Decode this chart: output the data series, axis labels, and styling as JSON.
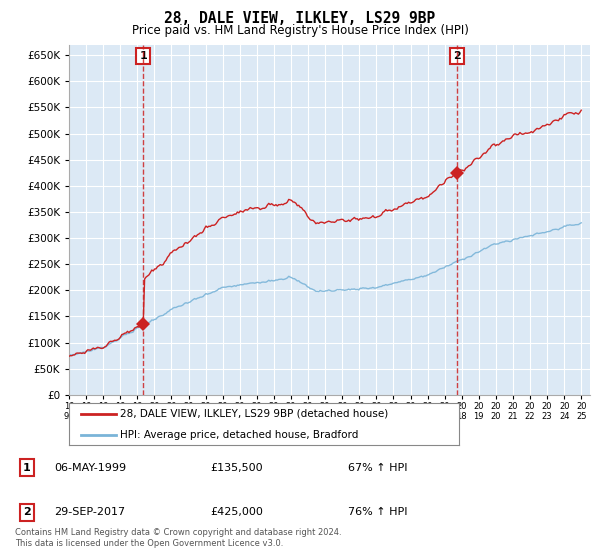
{
  "title": "28, DALE VIEW, ILKLEY, LS29 9BP",
  "subtitle": "Price paid vs. HM Land Registry's House Price Index (HPI)",
  "ylim": [
    0,
    670000
  ],
  "yticks": [
    0,
    50000,
    100000,
    150000,
    200000,
    250000,
    300000,
    350000,
    400000,
    450000,
    500000,
    550000,
    600000,
    650000
  ],
  "hpi_color": "#7ab4d8",
  "price_color": "#cc2222",
  "vline_color": "#cc2222",
  "sale1_date": "06-MAY-1999",
  "sale1_price": 135500,
  "sale1_hpi_txt": "67% ↑ HPI",
  "sale2_date": "29-SEP-2017",
  "sale2_price": 425000,
  "sale2_hpi_txt": "76% ↑ HPI",
  "legend_property": "28, DALE VIEW, ILKLEY, LS29 9BP (detached house)",
  "legend_hpi": "HPI: Average price, detached house, Bradford",
  "footnote": "Contains HM Land Registry data © Crown copyright and database right 2024.\nThis data is licensed under the Open Government Licence v3.0.",
  "sale1_x": 1999.35,
  "sale2_x": 2017.75,
  "bg_color": "#ffffff",
  "plot_bg_color": "#dce9f5",
  "grid_color": "#ffffff"
}
